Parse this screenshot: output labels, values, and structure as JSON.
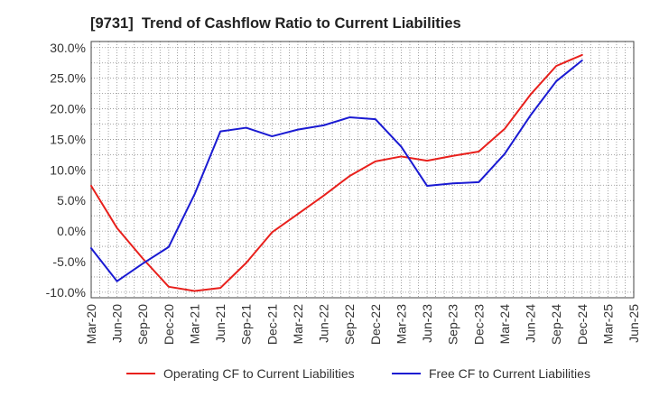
{
  "chart_data": {
    "type": "line",
    "title": "[9731]  Trend of Cashflow Ratio to Current Liabilities",
    "categories": [
      "Mar-20",
      "Jun-20",
      "Sep-20",
      "Dec-20",
      "Mar-21",
      "Jun-21",
      "Sep-21",
      "Dec-21",
      "Mar-22",
      "Jun-22",
      "Sep-22",
      "Dec-22",
      "Mar-23",
      "Jun-23",
      "Sep-23",
      "Dec-23",
      "Mar-24",
      "Jun-24",
      "Sep-24",
      "Dec-24",
      "Mar-25",
      "Jun-25"
    ],
    "yticks": [
      30,
      25,
      20,
      15,
      10,
      5,
      0,
      -5,
      -10
    ],
    "ytick_labels": [
      "30.0%",
      "25.0%",
      "20.0%",
      "15.0%",
      "10.0%",
      "5.0%",
      "0.0%",
      "-5.0%",
      "-10.0%"
    ],
    "ylim": [
      -10.9,
      31.0
    ],
    "grid": true,
    "legend": "bottom",
    "series": [
      {
        "name": "Operating CF to Current Liabilities",
        "color": "#e8201c",
        "values": [
          7.4,
          0.5,
          -4.5,
          -9.1,
          -9.8,
          -9.3,
          -5.2,
          -0.2,
          2.8,
          5.8,
          9.0,
          11.4,
          12.2,
          11.5,
          12.3,
          13.0,
          16.7,
          22.3,
          27.0,
          28.8,
          null,
          null
        ]
      },
      {
        "name": "Free CF to Current Liabilities",
        "color": "#1a1ad2",
        "values": [
          -2.8,
          -8.2,
          -5.3,
          -2.6,
          6.0,
          16.3,
          16.9,
          15.5,
          16.6,
          17.3,
          18.6,
          18.3,
          13.8,
          7.4,
          7.8,
          8.0,
          12.6,
          18.9,
          24.5,
          27.9,
          null,
          null
        ]
      }
    ]
  }
}
